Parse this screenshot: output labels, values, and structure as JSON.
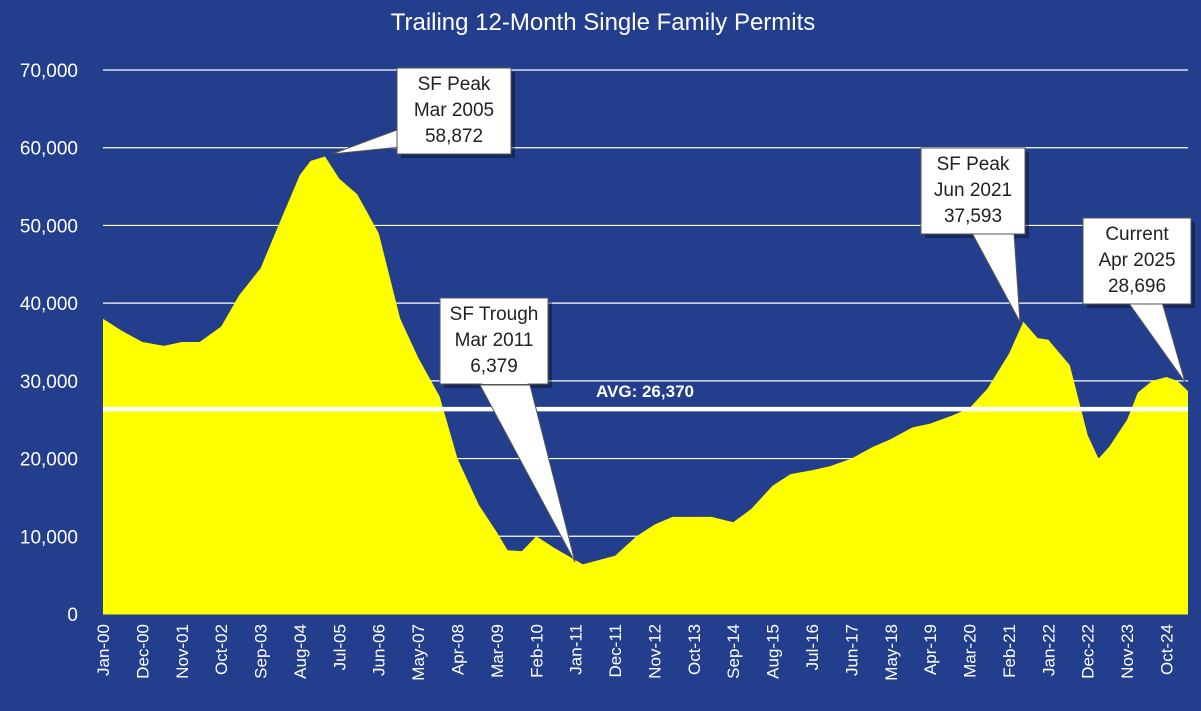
{
  "chart_data": {
    "type": "area",
    "title": "Trailing 12-Month Single Family Permits",
    "xlabel": "",
    "ylabel": "",
    "ylim": [
      0,
      70000
    ],
    "yticks": [
      0,
      10000,
      20000,
      30000,
      40000,
      50000,
      60000,
      70000
    ],
    "ytick_labels": [
      "0",
      "10,000",
      "20,000",
      "30,000",
      "40,000",
      "50,000",
      "60,000",
      "70,000"
    ],
    "xtick_labels": [
      "Jan-00",
      "Dec-00",
      "Nov-01",
      "Oct-02",
      "Sep-03",
      "Aug-04",
      "Jul-05",
      "Jun-06",
      "May-07",
      "Apr-08",
      "Mar-09",
      "Feb-10",
      "Jan-11",
      "Dec-11",
      "Nov-12",
      "Oct-13",
      "Sep-14",
      "Aug-15",
      "Jul-16",
      "Jun-17",
      "May-18",
      "Apr-19",
      "Mar-20",
      "Feb-21",
      "Jan-22",
      "Dec-22",
      "Nov-23",
      "Oct-24"
    ],
    "grid": true,
    "colors": {
      "background": "#243e8e",
      "fill": "#ffff00",
      "grid": "#ffffff",
      "average_line": "#ffffff"
    },
    "series": [
      {
        "period": [
          "Jan-00",
          "Apr-25"
        ],
        "points": [
          [
            "Jan-00",
            38000
          ],
          [
            "Jun-00",
            36500
          ],
          [
            "Dec-00",
            35000
          ],
          [
            "Jun-01",
            34500
          ],
          [
            "Nov-01",
            35000
          ],
          [
            "Apr-02",
            35000
          ],
          [
            "Oct-02",
            37000
          ],
          [
            "Mar-03",
            41000
          ],
          [
            "Sep-03",
            44500
          ],
          [
            "Feb-04",
            50000
          ],
          [
            "Aug-04",
            56500
          ],
          [
            "Nov-04",
            58300
          ],
          [
            "Mar-05",
            58872
          ],
          [
            "Jul-05",
            56000
          ],
          [
            "Dec-05",
            54000
          ],
          [
            "Jun-06",
            49000
          ],
          [
            "Dec-06",
            38000
          ],
          [
            "May-07",
            33000
          ],
          [
            "Nov-07",
            28000
          ],
          [
            "Apr-08",
            20000
          ],
          [
            "Oct-08",
            14000
          ],
          [
            "Mar-09",
            10500
          ],
          [
            "Jun-09",
            8200
          ],
          [
            "Oct-09",
            8100
          ],
          [
            "Feb-10",
            10000
          ],
          [
            "Jul-10",
            8500
          ],
          [
            "Mar-11",
            6379
          ],
          [
            "Dec-11",
            7500
          ],
          [
            "Jun-12",
            10000
          ],
          [
            "Nov-12",
            11500
          ],
          [
            "Apr-13",
            12500
          ],
          [
            "Oct-13",
            12500
          ],
          [
            "Mar-14",
            12500
          ],
          [
            "Sep-14",
            11800
          ],
          [
            "Feb-15",
            13500
          ],
          [
            "Aug-15",
            16500
          ],
          [
            "Jan-16",
            18000
          ],
          [
            "Jul-16",
            18500
          ],
          [
            "Dec-16",
            19000
          ],
          [
            "Jun-17",
            20000
          ],
          [
            "Dec-17",
            21500
          ],
          [
            "May-18",
            22500
          ],
          [
            "Nov-18",
            24000
          ],
          [
            "Apr-19",
            24500
          ],
          [
            "Oct-19",
            25500
          ],
          [
            "Mar-20",
            26500
          ],
          [
            "Aug-20",
            29000
          ],
          [
            "Feb-21",
            33500
          ],
          [
            "Jun-21",
            37593
          ],
          [
            "Oct-21",
            35500
          ],
          [
            "Jan-22",
            35300
          ],
          [
            "Jul-22",
            32000
          ],
          [
            "Dec-22",
            23000
          ],
          [
            "Mar-23",
            20000
          ],
          [
            "Jun-23",
            21500
          ],
          [
            "Nov-23",
            25000
          ],
          [
            "Feb-24",
            28500
          ],
          [
            "Jun-24",
            30000
          ],
          [
            "Oct-24",
            30500
          ],
          [
            "Jan-25",
            30000
          ],
          [
            "Apr-25",
            28696
          ]
        ]
      }
    ],
    "average": {
      "value": 26370,
      "label": "AVG: 26,370"
    },
    "annotations": [
      {
        "lines": [
          "SF Peak",
          "Mar 2005",
          "58,872"
        ],
        "date": "Mar-05",
        "value": 58872
      },
      {
        "lines": [
          "SF Trough",
          "Mar 2011",
          "6,379"
        ],
        "date": "Mar-11",
        "value": 6379
      },
      {
        "lines": [
          "SF Peak",
          "Jun 2021",
          "37,593"
        ],
        "date": "Jun-21",
        "value": 37593
      },
      {
        "lines": [
          "Current",
          "Apr 2025",
          "28,696"
        ],
        "date": "Apr-25",
        "value": 28696
      }
    ]
  }
}
